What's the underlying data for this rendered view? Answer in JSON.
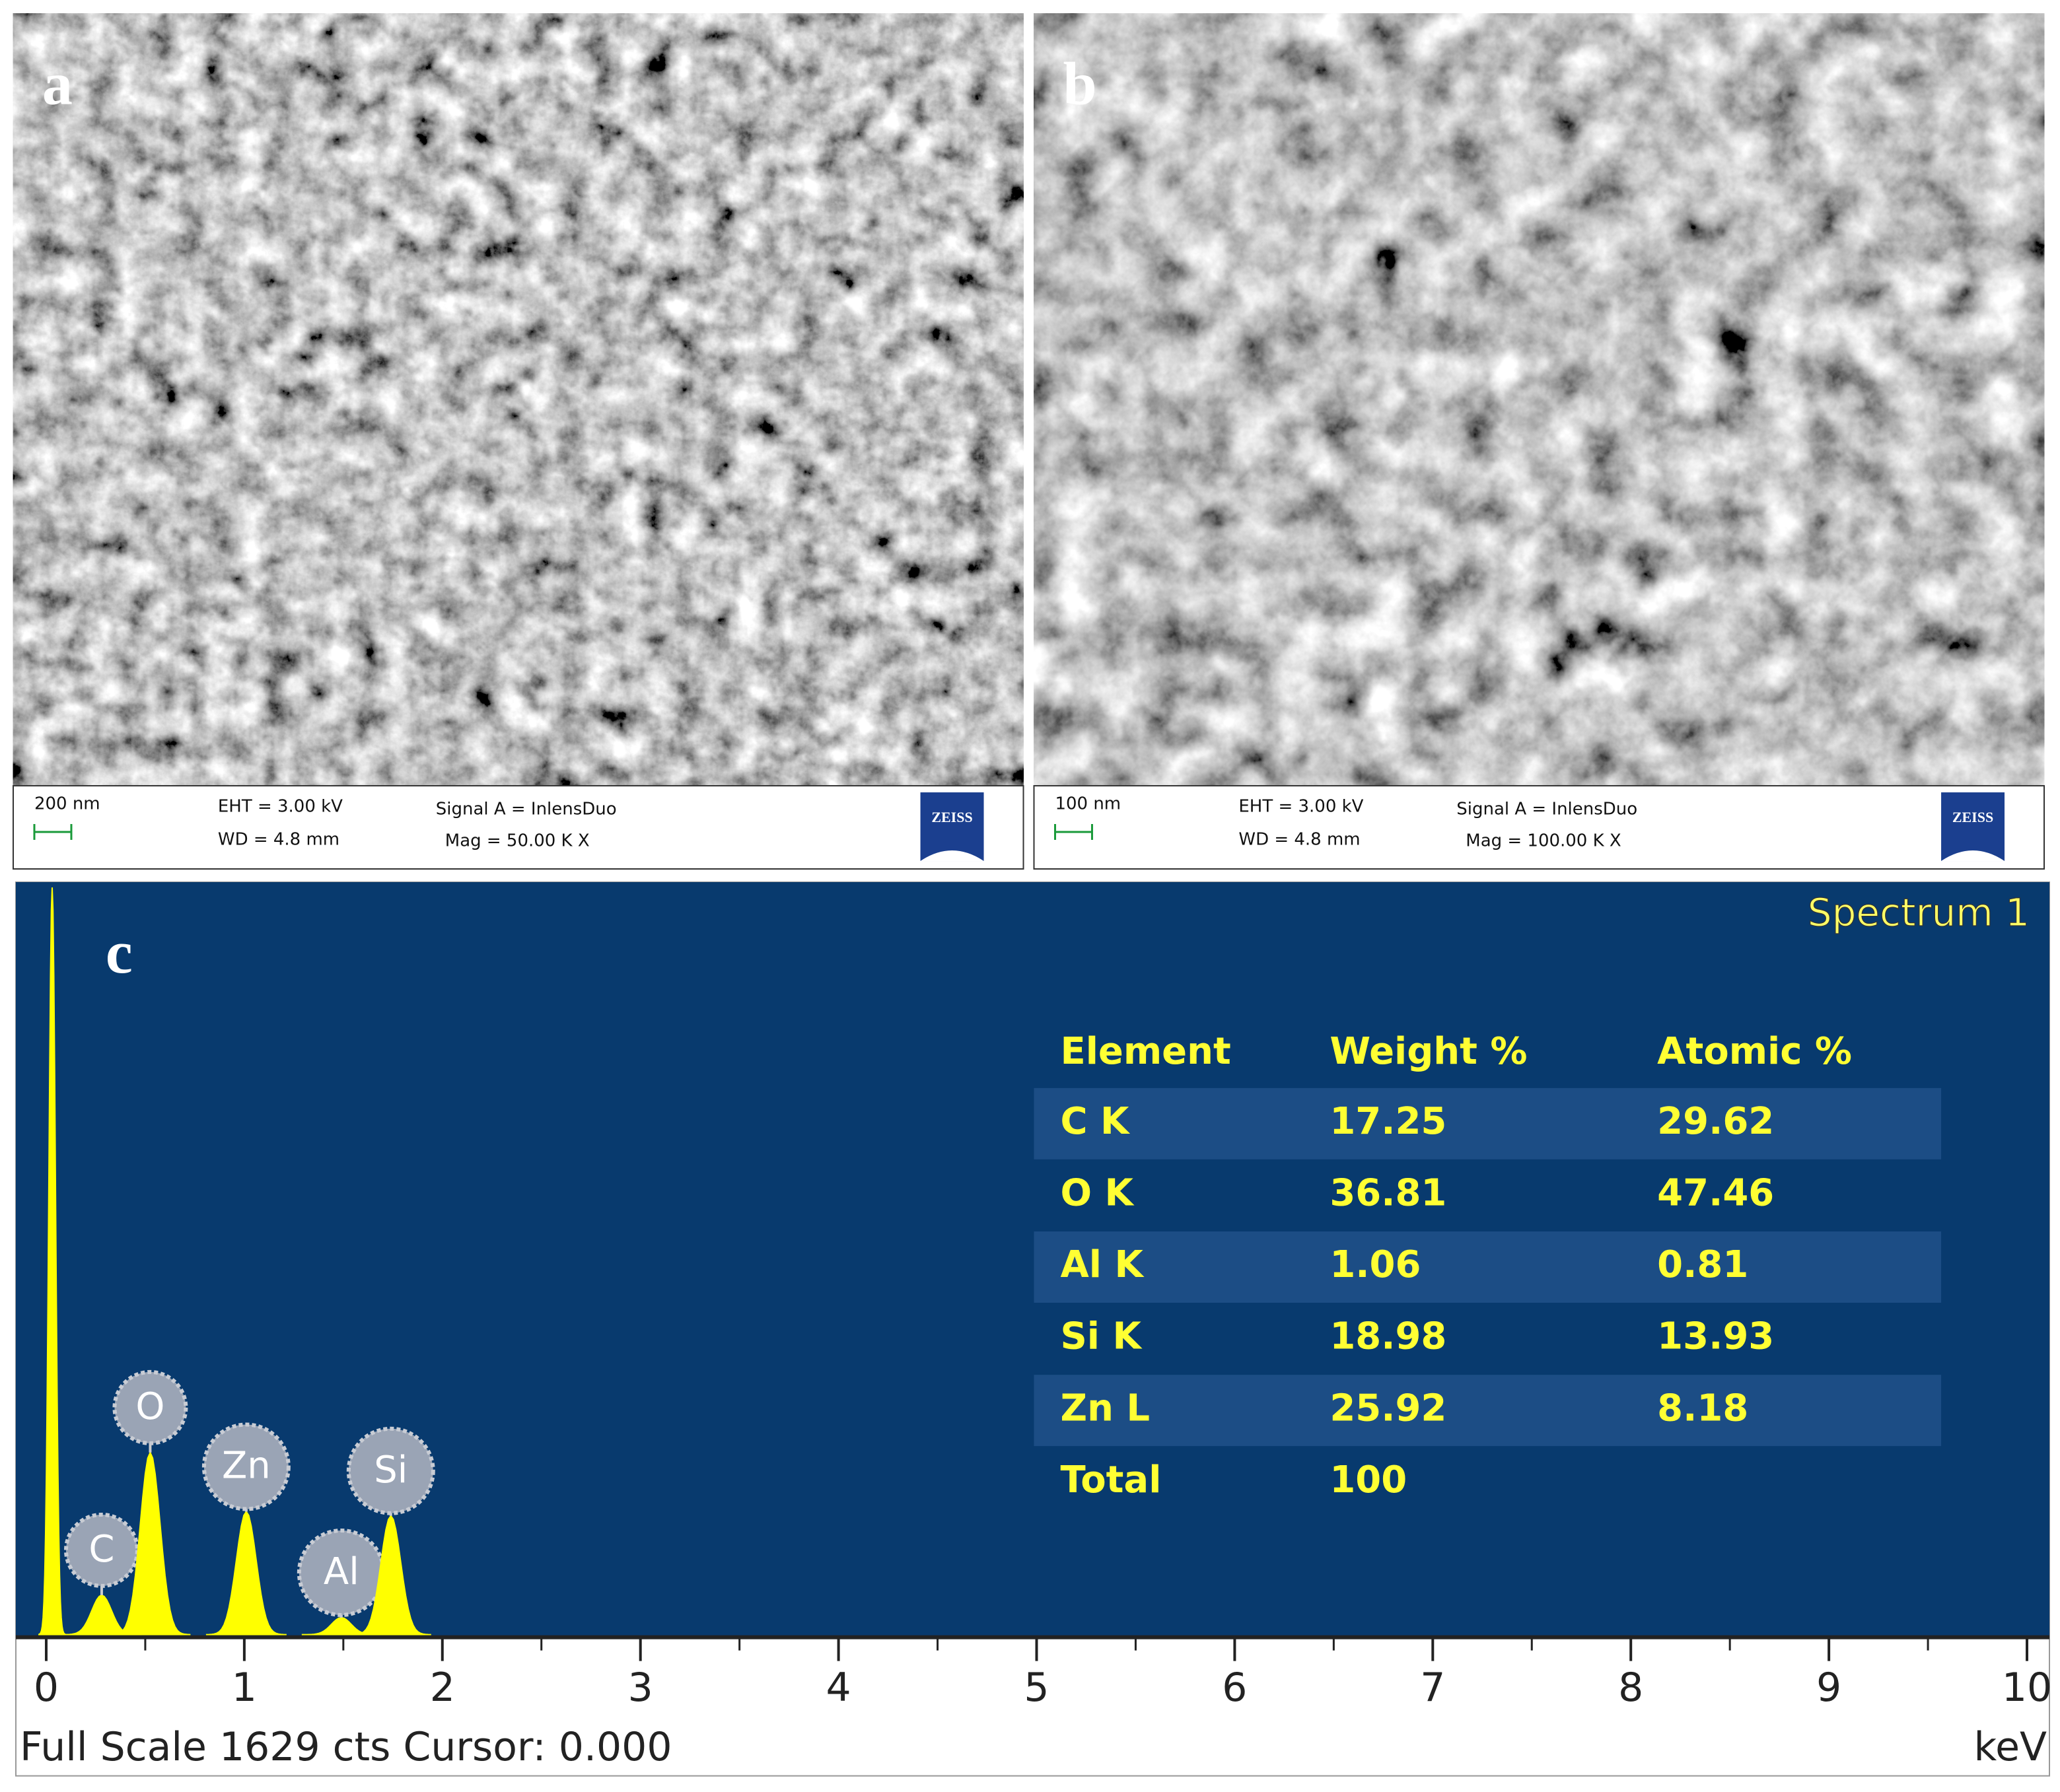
{
  "panels": [
    {
      "label": "a",
      "scale_bar": "200 nm",
      "eht": "EHT = 3.00 kV",
      "wd": "WD = 4.8 mm",
      "signal": "Signal A = InlensDuo",
      "mag": "Mag =  50.00 K X",
      "logo": "ZEISS"
    },
    {
      "label": "b",
      "scale_bar": "100 nm",
      "eht": "EHT = 3.00 kV",
      "wd": "WD = 4.8 mm",
      "signal": "Signal A = InlensDuo",
      "mag": "Mag =  100.00 K X",
      "logo": "ZEISS"
    }
  ],
  "spectrum": {
    "type": "spectrum",
    "label": "c",
    "title": "Spectrum 1",
    "color": "#ffff00",
    "background": "#083a6e",
    "xlim": [
      0,
      10
    ],
    "xticks": [
      0,
      1,
      2,
      3,
      4,
      5,
      6,
      7,
      8,
      9,
      10
    ],
    "ylim": [
      0,
      1629
    ],
    "footer": "Full Scale 1629 cts Cursor: 0.000",
    "unit": "keV",
    "peaks": [
      {
        "x": 0.03,
        "counts": 1629
      },
      {
        "label": "C",
        "x": 0.28,
        "counts": 86
      },
      {
        "label": "O",
        "x": 0.525,
        "counts": 397
      },
      {
        "label": "Zn",
        "x": 1.01,
        "counts": 268
      },
      {
        "label": "Al",
        "x": 1.49,
        "counts": 37
      },
      {
        "label": "Si",
        "x": 1.74,
        "counts": 259
      }
    ]
  },
  "table": {
    "header": [
      "Element",
      "Weight %",
      "Atomic %"
    ],
    "rows": [
      [
        "C K",
        "17.25",
        "29.62"
      ],
      [
        "O K",
        "36.81",
        "47.46"
      ],
      [
        "Al K",
        "1.06",
        "0.81"
      ],
      [
        "Si K",
        "18.98",
        "13.93"
      ],
      [
        "Zn L",
        "25.92",
        "8.18"
      ],
      [
        "Total",
        "100"
      ]
    ]
  }
}
